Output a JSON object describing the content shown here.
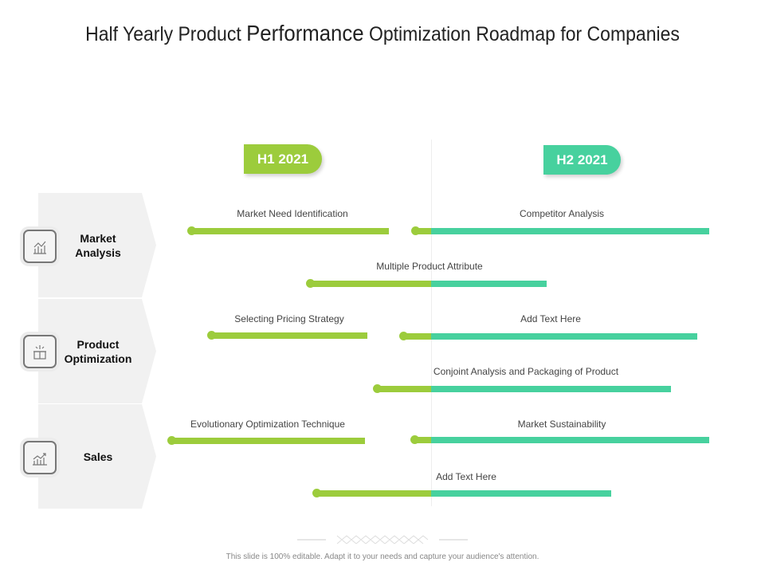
{
  "title": {
    "pre": "Half Yearly Product ",
    "emph": "Performance",
    "post": " Optimization Roadmap for Companies"
  },
  "periods": [
    {
      "label": "H1 2021",
      "color": "#9ccc3c"
    },
    {
      "label": "H2 2021",
      "color": "#47d19e"
    }
  ],
  "categories": [
    {
      "label": "Market Analysis",
      "icon": "chart-growth-icon"
    },
    {
      "label": "Product Optimization",
      "icon": "gift-box-icon"
    },
    {
      "label": "Sales",
      "icon": "sales-chart-icon"
    }
  ],
  "tasks": [
    {
      "label": "Market Need Identification"
    },
    {
      "label": "Competitor Analysis"
    },
    {
      "label": "Multiple Product Attribute"
    },
    {
      "label": "Selecting Pricing Strategy"
    },
    {
      "label": "Add Text Here"
    },
    {
      "label": "Conjoint Analysis and Packaging of Product"
    },
    {
      "label": "Evolutionary Optimization Technique"
    },
    {
      "label": "Market Sustainability"
    },
    {
      "label": "Add Text Here"
    }
  ],
  "footer": "This slide is 100% editable. Adapt it to your needs and capture your audience's attention."
}
